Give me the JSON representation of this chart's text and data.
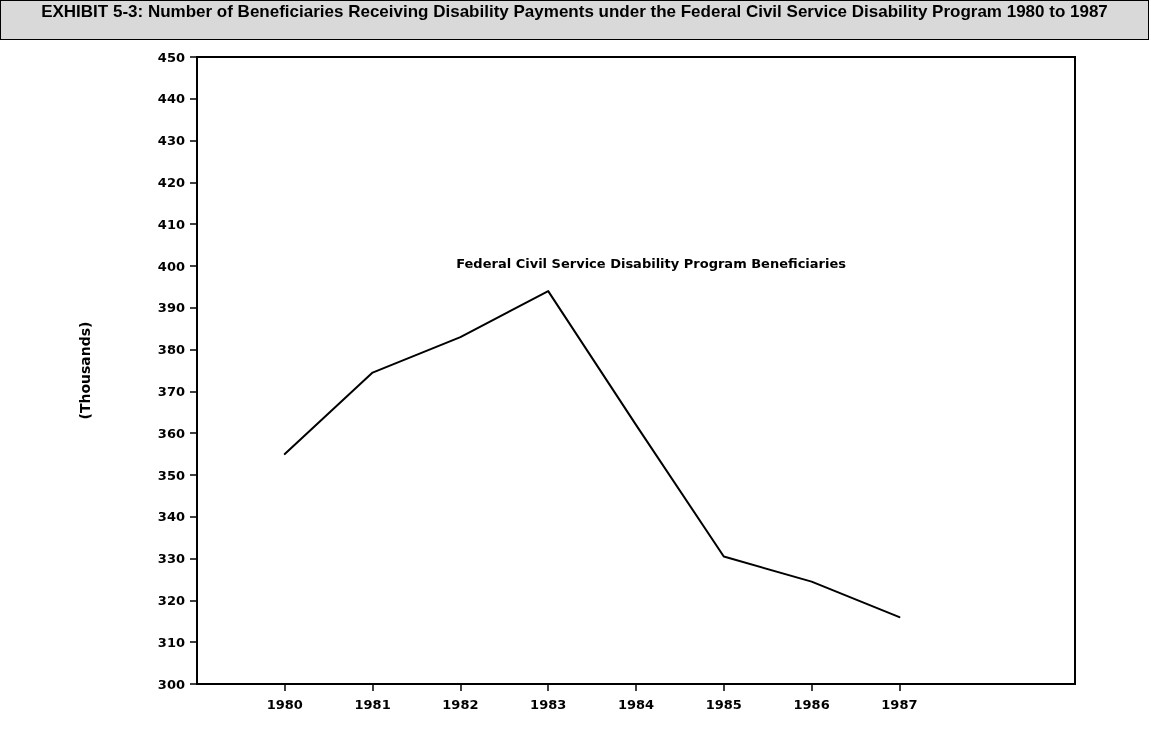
{
  "chart_data": {
    "type": "line",
    "title": "EXHIBIT 5-3: Number of Beneficiaries Receiving Disability Payments under the Federal Civil Service Disability Program 1980 to 1987",
    "ylabel": "(Thousands)",
    "x": [
      1980,
      1981,
      1982,
      1983,
      1984,
      1985,
      1986,
      1987
    ],
    "series": [
      {
        "name": "Federal Civil Service Disability Program Beneficiaries",
        "color": "#000000",
        "values": [
          355,
          374.5,
          383,
          394,
          362,
          330.5,
          324.5,
          316
        ]
      }
    ],
    "xlim": [
      1979,
      1989
    ],
    "xticks": [
      1980,
      1981,
      1982,
      1983,
      1984,
      1985,
      1986,
      1987
    ],
    "ylim": [
      300,
      450
    ],
    "yticks": [
      300,
      310,
      320,
      330,
      340,
      350,
      360,
      370,
      380,
      390,
      400,
      410,
      420,
      430,
      440,
      450
    ],
    "grid": false,
    "legend": false,
    "marker": "none",
    "line_style": "solid"
  }
}
